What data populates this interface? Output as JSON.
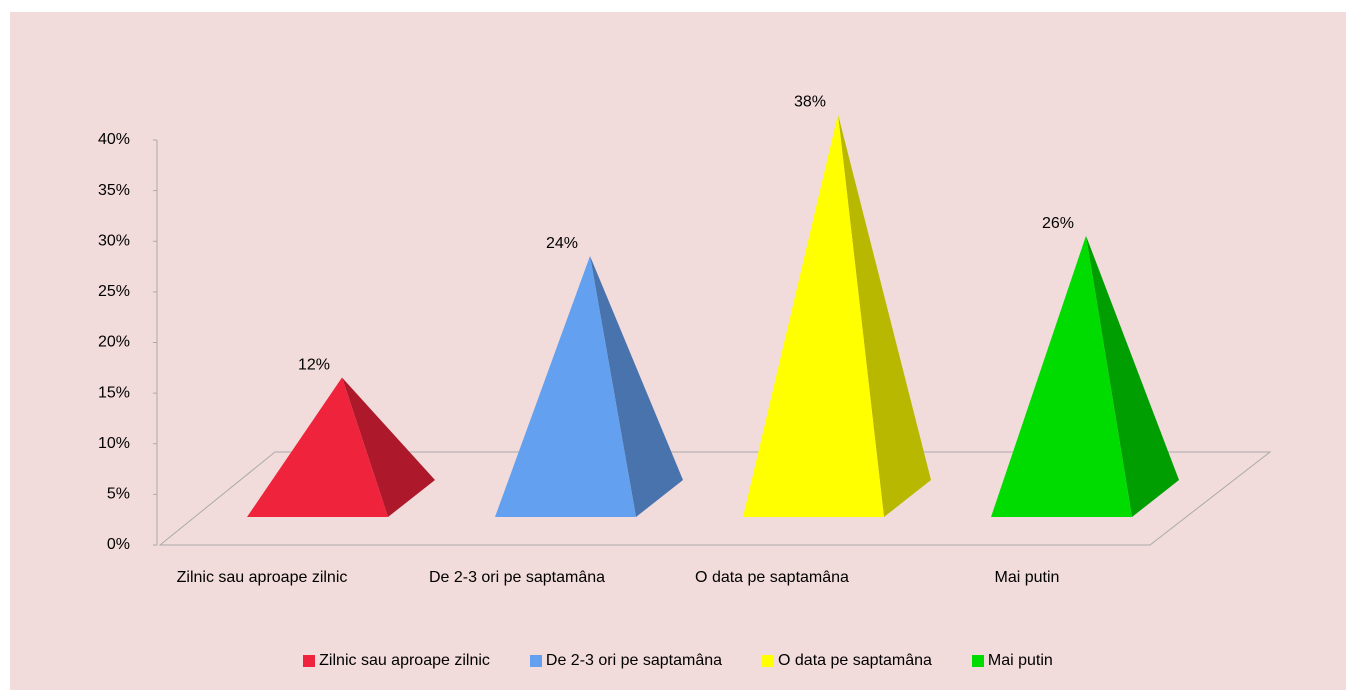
{
  "chart_data": {
    "type": "pyramid3d",
    "categories": [
      "Zilnic sau aproape zilnic",
      "De 2-3 ori pe saptamâna",
      "O data pe saptamâna",
      "Mai putin"
    ],
    "values": [
      12,
      24,
      38,
      26
    ],
    "value_labels": [
      "12%",
      "24%",
      "38%",
      "26%"
    ],
    "colors": [
      "#f0233c",
      "#64a0f0",
      "#ffff00",
      "#00dc00"
    ],
    "ylim": [
      0,
      40
    ],
    "yticks": [
      {
        "value": 0,
        "label": "0%"
      },
      {
        "value": 5,
        "label": "5%"
      },
      {
        "value": 10,
        "label": "10%"
      },
      {
        "value": 15,
        "label": "15%"
      },
      {
        "value": 20,
        "label": "20%"
      },
      {
        "value": 25,
        "label": "25%"
      },
      {
        "value": 30,
        "label": "30%"
      },
      {
        "value": 35,
        "label": "35%"
      },
      {
        "value": 40,
        "label": "40%"
      }
    ],
    "legend": "bottom"
  }
}
